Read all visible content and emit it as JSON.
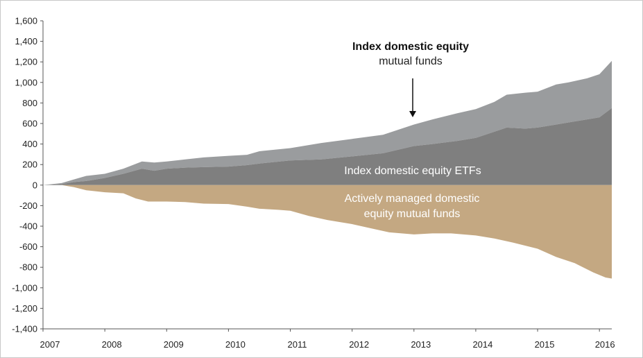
{
  "chart_data": {
    "type": "area",
    "x_start": 2007.0,
    "x_end": 2016.2,
    "xlim": [
      2007,
      2016.2
    ],
    "ylim": [
      -1400,
      1600
    ],
    "y_ticks": [
      1600,
      1400,
      1200,
      1000,
      800,
      600,
      400,
      200,
      0,
      -200,
      -400,
      -600,
      -800,
      -1000,
      -1200,
      -1400
    ],
    "y_tick_labels": [
      "1,600",
      "1,400",
      "1,200",
      "1,000",
      "800",
      "600",
      "400",
      "200",
      "0",
      "-200",
      "-400",
      "-600",
      "-800",
      "-1,000",
      "-1,200",
      "-1,400"
    ],
    "x_ticks": [
      2007,
      2008,
      2009,
      2010,
      2011,
      2012,
      2013,
      2014,
      2015,
      2016
    ],
    "x_tick_labels": [
      "2007",
      "2008",
      "2009",
      "2010",
      "2011",
      "2012",
      "2013",
      "2014",
      "2015",
      "2016"
    ],
    "grid": false,
    "colors": {
      "index_mutual_funds": "#9a9c9e",
      "index_etfs": "#7f7f7f",
      "active_mutual_funds": "#c4a882",
      "axis": "#555555"
    },
    "series": [
      {
        "name": "Index domestic equity ETFs",
        "x": [
          2007.0,
          2007.3,
          2007.5,
          2007.7,
          2008.0,
          2008.3,
          2008.6,
          2008.8,
          2009.0,
          2009.3,
          2009.6,
          2010.0,
          2010.3,
          2010.5,
          2011.0,
          2011.5,
          2012.0,
          2012.5,
          2013.0,
          2013.3,
          2013.7,
          2014.0,
          2014.3,
          2014.5,
          2014.8,
          2015.0,
          2015.3,
          2015.5,
          2015.8,
          2016.0,
          2016.2
        ],
        "values": [
          0,
          10,
          30,
          40,
          70,
          110,
          160,
          140,
          160,
          170,
          175,
          180,
          195,
          210,
          240,
          250,
          280,
          310,
          380,
          400,
          430,
          460,
          520,
          560,
          550,
          560,
          590,
          610,
          640,
          660,
          750
        ]
      },
      {
        "name": "Index domestic equity mutual funds",
        "x": [
          2007.0,
          2007.3,
          2007.5,
          2007.7,
          2008.0,
          2008.3,
          2008.6,
          2008.8,
          2009.0,
          2009.3,
          2009.6,
          2010.0,
          2010.3,
          2010.5,
          2011.0,
          2011.5,
          2012.0,
          2012.5,
          2013.0,
          2013.3,
          2013.7,
          2014.0,
          2014.3,
          2014.5,
          2014.8,
          2015.0,
          2015.3,
          2015.5,
          2015.8,
          2016.0,
          2016.2
        ],
        "values": [
          0,
          10,
          25,
          50,
          40,
          50,
          70,
          80,
          70,
          80,
          95,
          105,
          100,
          120,
          120,
          160,
          170,
          180,
          210,
          240,
          270,
          280,
          290,
          320,
          350,
          350,
          390,
          390,
          400,
          420,
          460
        ]
      },
      {
        "name": "Actively managed domestic equity mutual funds",
        "x": [
          2007.0,
          2007.3,
          2007.5,
          2007.7,
          2008.0,
          2008.3,
          2008.5,
          2008.7,
          2009.0,
          2009.3,
          2009.6,
          2010.0,
          2010.3,
          2010.5,
          2010.8,
          2011.0,
          2011.3,
          2011.6,
          2012.0,
          2012.3,
          2012.6,
          2013.0,
          2013.3,
          2013.6,
          2014.0,
          2014.3,
          2014.6,
          2015.0,
          2015.3,
          2015.6,
          2015.9,
          2016.1,
          2016.2
        ],
        "values": [
          0,
          0,
          -20,
          -50,
          -70,
          -80,
          -130,
          -160,
          -160,
          -165,
          -180,
          -185,
          -210,
          -230,
          -240,
          -250,
          -300,
          -340,
          -380,
          -420,
          -460,
          -480,
          -470,
          -470,
          -490,
          -520,
          -560,
          -620,
          -700,
          -760,
          -850,
          -900,
          -910
        ]
      }
    ],
    "annotations": [
      {
        "lines": [
          "Index domestic equity",
          "mutual funds"
        ],
        "x": 2012.9,
        "y": 600
      },
      {
        "lines": [
          "Index domestic equity ETFs"
        ]
      },
      {
        "lines": [
          "Actively managed domestic",
          "equity mutual funds"
        ]
      }
    ]
  }
}
